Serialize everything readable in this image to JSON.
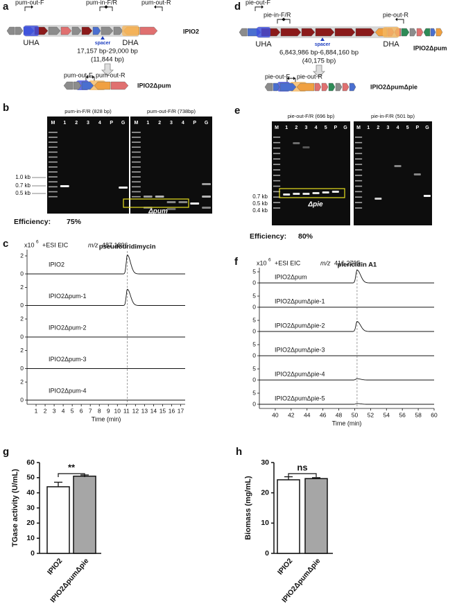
{
  "panels": {
    "a": {
      "label": "a",
      "primers": {
        "out_f": "pum-out-F",
        "in_fr": "pum-in-F/R",
        "out_r": "pum-out-R"
      },
      "uha": "UHA",
      "dha": "DHA",
      "spacer": "spacer",
      "range": "17,157 bp-29,000 bp",
      "length": "(11,844 bp)",
      "strain": "IPIO2",
      "mutant_primers": {
        "out_f": "pum-out-F",
        "out_r": "pum-out-R"
      },
      "mutant": "IPIO2Δpum"
    },
    "b": {
      "label": "b",
      "gels": [
        {
          "title": "pum-in-F/R (828 bp)",
          "lanes": [
            "M",
            "1",
            "2",
            "3",
            "4",
            "P",
            "G"
          ]
        },
        {
          "title": "pum-out-F/R (738bp)",
          "lanes": [
            "M",
            "1",
            "2",
            "3",
            "4",
            "P",
            "G"
          ]
        }
      ],
      "markers": [
        "1.0 kb",
        "0.7 kb",
        "0.5 kb"
      ],
      "band_label": "Δpum",
      "efficiency_label": "Efficiency:",
      "efficiency": "75%"
    },
    "d": {
      "label": "d",
      "primers": {
        "out_f": "pie-out-F",
        "in_fr": "pie-in-F/R",
        "out_r": "pie-out-R"
      },
      "uha": "UHA",
      "dha": "DHA",
      "spacer": "spacer",
      "range": "6,843,986 bp-6,884,160 bp",
      "length": "(40,175 bp)",
      "strain": "IPIO2Δpum",
      "mutant_primers": {
        "out_f": "pie-out-F",
        "out_r": "pie-out-R"
      },
      "mutant": "IPIO2ΔpumΔpie"
    },
    "e": {
      "label": "e",
      "gels": [
        {
          "title": "pie-out-F/R (696 bp)",
          "lanes": [
            "M",
            "1",
            "2",
            "3",
            "4",
            "5",
            "P",
            "G"
          ]
        },
        {
          "title": "pie-in-F/R (501 bp)",
          "lanes": [
            "M",
            "1",
            "2",
            "3",
            "4",
            "5",
            "P",
            "G"
          ]
        }
      ],
      "markers": [
        "0.7 kb",
        "0.5 kb",
        "0.4 kb"
      ],
      "band_label": "Δpie",
      "efficiency_label": "Efficiency:",
      "efficiency": "80%"
    }
  },
  "chart_data": [
    {
      "type": "chromatogram",
      "panel": "c",
      "multiplier": "x10",
      "multiplier_exp": 6,
      "mode": "+ESI EIC",
      "mz_label": "m/z",
      "mz": 487.1896,
      "peak_label": "pseudouridimycin",
      "peak_x": 11.1,
      "x_label": "Time (min)",
      "xlim": [
        0,
        17.5
      ],
      "xticks": [
        1,
        2,
        3,
        4,
        5,
        6,
        7,
        8,
        9,
        10,
        11,
        12,
        13,
        14,
        15,
        16,
        17
      ],
      "ylim": [
        0,
        3
      ],
      "yticks": [
        0,
        2
      ],
      "color": "#111111",
      "series": [
        {
          "name": "IPIO2",
          "peak": 2.1
        },
        {
          "name": "IPIO2Δpum-1",
          "peak": 1.8
        },
        {
          "name": "IPIO2Δpum-2",
          "peak": 0
        },
        {
          "name": "IPIO2Δpum-3",
          "peak": 0
        },
        {
          "name": "IPIO2Δpum-4",
          "peak": 0
        }
      ]
    },
    {
      "type": "chromatogram",
      "panel": "f",
      "multiplier": "x10",
      "multiplier_exp": 6,
      "mode": "+ESI EIC",
      "mz_label": "m/z",
      "mz": 416.2795,
      "peak_label": "piericidin A1",
      "peak_x": 50.3,
      "x_label": "Time (min)",
      "xlim": [
        38,
        60
      ],
      "xticks": [
        40,
        42,
        44,
        46,
        48,
        50,
        52,
        54,
        56,
        58,
        60
      ],
      "ylim": [
        0,
        6.5
      ],
      "yticks": [
        0,
        5
      ],
      "color": "#111111",
      "series": [
        {
          "name": "IPIO2Δpum",
          "peak": 5.8
        },
        {
          "name": "IPIO2ΔpumΔpie-1",
          "peak": 0
        },
        {
          "name": "IPIO2ΔpumΔpie-2",
          "peak": 4.5
        },
        {
          "name": "IPIO2ΔpumΔpie-3",
          "peak": 0
        },
        {
          "name": "IPIO2ΔpumΔpie-4",
          "peak": 0.6
        },
        {
          "name": "IPIO2ΔpumΔpie-5",
          "peak": 0.3
        }
      ]
    },
    {
      "type": "bar",
      "panel": "g",
      "y_label": "TGase activity (U/mL)",
      "categories": [
        "IPIO2",
        "IPIO2ΔpumΔpie"
      ],
      "values": [
        44,
        51
      ],
      "errors": [
        3,
        0.8
      ],
      "colors": [
        "#ffffff",
        "#a6a6a6"
      ],
      "ylim": [
        0,
        60
      ],
      "yticks": [
        0,
        10,
        20,
        30,
        40,
        50,
        60
      ],
      "significance": "**"
    },
    {
      "type": "bar",
      "panel": "h",
      "y_label": "Biomass (mg/mL)",
      "categories": [
        "IPIO2",
        "IPIO2ΔpumΔpie"
      ],
      "values": [
        24.3,
        24.7
      ],
      "errors": [
        1,
        0.3
      ],
      "colors": [
        "#ffffff",
        "#a6a6a6"
      ],
      "ylim": [
        0,
        30
      ],
      "yticks": [
        0,
        10,
        20,
        30
      ],
      "significance": "ns"
    }
  ]
}
